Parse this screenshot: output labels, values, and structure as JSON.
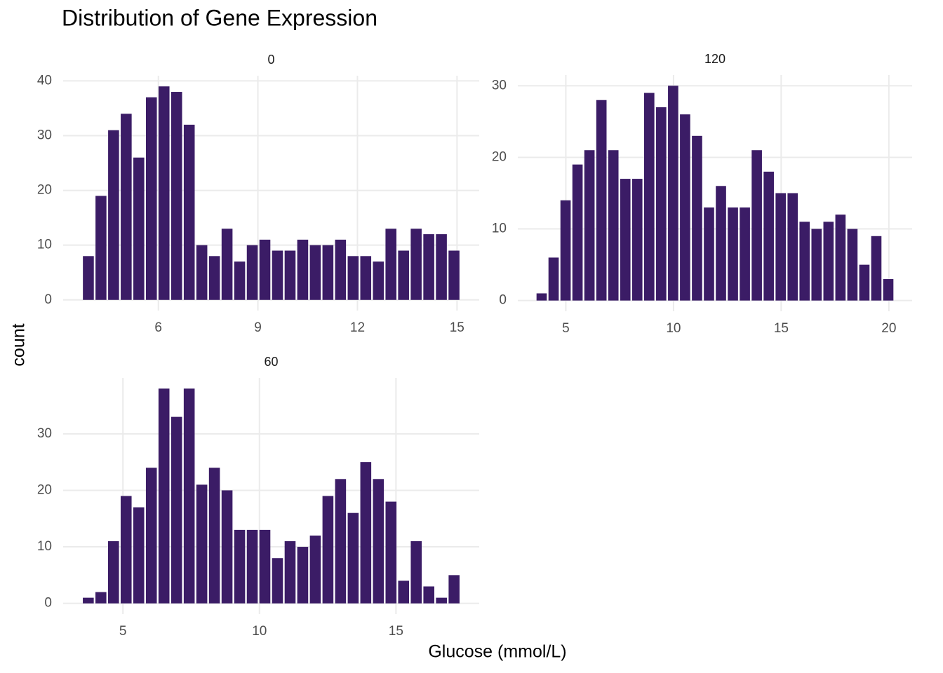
{
  "title": "Distribution of Gene Expression",
  "x_label": "Glucose (mmol/L)",
  "y_label": "count",
  "chart_data": [
    {
      "type": "histogram",
      "title": "0",
      "color": "#3b1c66",
      "grid": true,
      "bins": [
        3.7,
        4.08,
        4.46,
        4.84,
        5.22,
        5.6,
        5.98,
        6.36,
        6.74,
        7.12,
        7.5,
        7.88,
        8.26,
        8.64,
        9.02,
        9.4,
        9.78,
        10.16,
        10.54,
        10.92,
        11.3,
        11.68,
        12.06,
        12.44,
        12.82,
        13.2,
        13.58,
        13.96,
        14.34,
        14.72,
        15.1
      ],
      "values": [
        8,
        19,
        31,
        34,
        26,
        37,
        39,
        38,
        32,
        10,
        8,
        13,
        7,
        10,
        11,
        9,
        9,
        11,
        10,
        10,
        11,
        8,
        8,
        7,
        13,
        9,
        13,
        12,
        12,
        9
      ],
      "xlim": [
        3.13,
        15.67
      ],
      "ylim": [
        -1.95,
        40.95
      ],
      "xticks": [
        6,
        9,
        12,
        15
      ],
      "yticks": [
        0,
        10,
        20,
        30,
        40
      ]
    },
    {
      "type": "histogram",
      "title": "120",
      "color": "#3b1c66",
      "grid": true,
      "bins": [
        3.6,
        4.155,
        4.71,
        5.265,
        5.82,
        6.375,
        6.93,
        7.485,
        8.04,
        8.595,
        9.15,
        9.705,
        10.26,
        10.815,
        11.37,
        11.925,
        12.48,
        13.035,
        13.59,
        14.145,
        14.7,
        15.255,
        15.81,
        16.365,
        16.92,
        17.475,
        18.03,
        18.585,
        19.14,
        19.695,
        20.25
      ],
      "values": [
        1,
        6,
        14,
        19,
        21,
        28,
        21,
        17,
        17,
        29,
        27,
        30,
        26,
        23,
        13,
        16,
        13,
        13,
        21,
        18,
        15,
        15,
        11,
        10,
        11,
        12,
        10,
        5,
        9,
        3
      ],
      "xlim": [
        2.77,
        21.08
      ],
      "ylim": [
        -1.5,
        31.5
      ],
      "xticks": [
        5,
        10,
        15,
        20
      ],
      "yticks": [
        0,
        10,
        20,
        30
      ]
    },
    {
      "type": "histogram",
      "title": "60",
      "color": "#3b1c66",
      "grid": true,
      "bins": [
        3.5,
        3.962,
        4.424,
        4.886,
        5.348,
        5.81,
        6.272,
        6.734,
        7.196,
        7.658,
        8.12,
        8.582,
        9.044,
        9.506,
        9.968,
        10.43,
        10.892,
        11.354,
        11.816,
        12.278,
        12.74,
        13.202,
        13.664,
        14.126,
        14.588,
        15.05,
        15.512,
        15.974,
        16.436,
        16.898,
        17.36
      ],
      "values": [
        1,
        2,
        11,
        19,
        17,
        24,
        38,
        33,
        38,
        21,
        24,
        20,
        13,
        13,
        13,
        8,
        11,
        10,
        12,
        19,
        22,
        16,
        25,
        22,
        18,
        4,
        11,
        3,
        1,
        5
      ],
      "xlim": [
        2.81,
        18.05
      ],
      "ylim": [
        -1.9,
        39.9
      ],
      "xticks": [
        5,
        10,
        15
      ],
      "yticks": [
        0,
        10,
        20,
        30
      ]
    }
  ]
}
